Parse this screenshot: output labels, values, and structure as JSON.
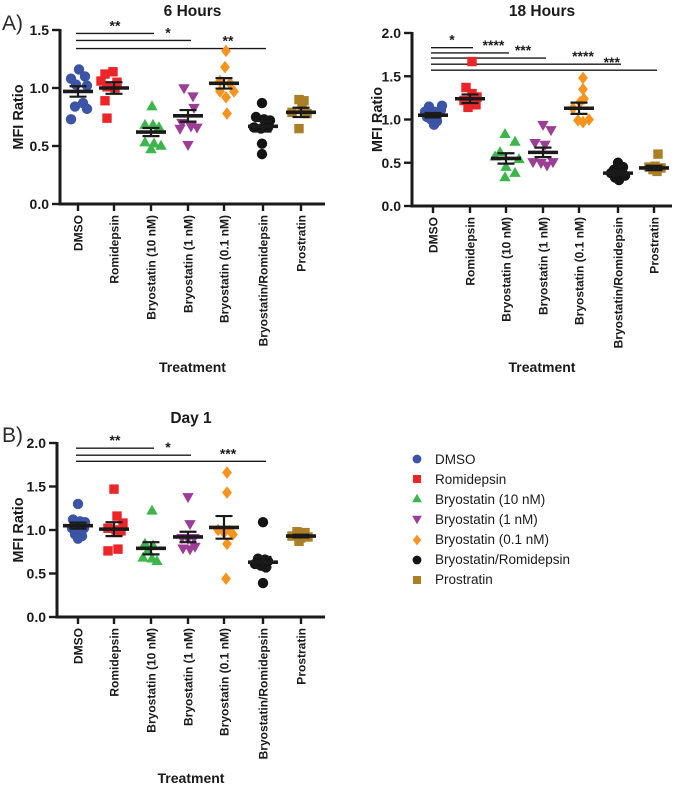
{
  "panels": {
    "a": "A)",
    "b": "B)"
  },
  "colors": {
    "blue": "#3B54A5",
    "red": "#EC2528",
    "green": "#3CB64B",
    "purple": "#9C3D97",
    "orange": "#F79420",
    "black": "#141414",
    "dark_yellow": "#AC7E25",
    "axis": "#1a1a1a"
  },
  "legend": {
    "items": [
      {
        "label": "DMSO",
        "marker": "circle",
        "color": "#3B54A5"
      },
      {
        "label": "Romidepsin",
        "marker": "square",
        "color": "#EC2528"
      },
      {
        "label": "Bryostatin (10 nM)",
        "marker": "triangle-up",
        "color": "#3CB64B"
      },
      {
        "label": "Bryostatin (1 nM)",
        "marker": "triangle-down",
        "color": "#9C3D97"
      },
      {
        "label": "Bryostatin (0.1 nM)",
        "marker": "diamond",
        "color": "#F79420"
      },
      {
        "label": "Bryostatin/Romidepsin",
        "marker": "circle",
        "color": "#141414"
      },
      {
        "label": "Prostratin",
        "marker": "square",
        "color": "#AC7E25"
      }
    ]
  },
  "chart_data": [
    {
      "type": "scatter",
      "title": "6 Hours",
      "xlabel": "Treatment",
      "ylabel": "MFI Ratio",
      "ylim": [
        0,
        1.5
      ],
      "yticks": [
        "0.0",
        "0.5",
        "1.0",
        "1.5"
      ],
      "categories": [
        "DMSO",
        "Romidepsin",
        "Bryostatin (10 nM)",
        "Bryostatin (1 nM)",
        "Bryostatin (0.1 nM)",
        "Bryostatin/Romidepsin",
        "Prostratin"
      ],
      "series": [
        {
          "name": "DMSO",
          "marker": "circle",
          "color": "#3B54A5",
          "mean": 0.97,
          "sem": 0.045,
          "points": [
            [
              1,
              1.16
            ],
            [
              -7,
              1.08
            ],
            [
              7,
              1.1
            ],
            [
              -2,
              1.03
            ],
            [
              9,
              1.02
            ],
            [
              5,
              0.87
            ],
            [
              -3,
              0.84
            ],
            [
              9,
              0.82
            ],
            [
              -7,
              0.73
            ]
          ]
        },
        {
          "name": "Romidepsin",
          "marker": "square",
          "color": "#EC2528",
          "mean": 1.0,
          "sem": 0.05,
          "points": [
            [
              -9,
              1.12
            ],
            [
              -1,
              1.14
            ],
            [
              -13,
              1.06
            ],
            [
              3,
              1.05
            ],
            [
              -7,
              1.01
            ],
            [
              1,
              1.0
            ],
            [
              -9,
              0.89
            ],
            [
              -7,
              0.74
            ]
          ]
        },
        {
          "name": "Bryostatin (10 nM)",
          "marker": "triangle-up",
          "color": "#3CB64B",
          "mean": 0.62,
          "sem": 0.035,
          "points": [
            [
              1,
              0.84
            ],
            [
              -6,
              0.68
            ],
            [
              2,
              0.68
            ],
            [
              8,
              0.66
            ],
            [
              -6,
              0.53
            ],
            [
              3,
              0.52
            ],
            [
              10,
              0.5
            ],
            [
              0,
              0.47
            ]
          ]
        },
        {
          "name": "Bryostatin (1 nM)",
          "marker": "triangle-down",
          "color": "#9C3D97",
          "mean": 0.76,
          "sem": 0.05,
          "points": [
            [
              -4,
              1.0
            ],
            [
              5,
              0.93
            ],
            [
              6,
              0.83
            ],
            [
              -6,
              0.7
            ],
            [
              3,
              0.67
            ],
            [
              9,
              0.66
            ],
            [
              -8,
              0.65
            ],
            [
              0,
              0.51
            ]
          ]
        },
        {
          "name": "Bryostatin (0.1 nM)",
          "marker": "diamond",
          "color": "#F79420",
          "mean": 1.04,
          "sem": 0.045,
          "points": [
            [
              2,
              1.32
            ],
            [
              1,
              1.18
            ],
            [
              -4,
              1.06
            ],
            [
              6,
              1.04
            ],
            [
              -4,
              0.97
            ],
            [
              10,
              0.97
            ],
            [
              2,
              0.92
            ],
            [
              3,
              0.78
            ]
          ]
        },
        {
          "name": "Bryostatin/Romidepsin",
          "marker": "circle",
          "color": "#141414",
          "mean": 0.67,
          "sem": 0.045,
          "points": [
            [
              -1,
              0.87
            ],
            [
              -7,
              0.75
            ],
            [
              1,
              0.73
            ],
            [
              7,
              0.72
            ],
            [
              -9,
              0.66
            ],
            [
              -2,
              0.65
            ],
            [
              5,
              0.66
            ],
            [
              -1,
              0.52
            ],
            [
              -1,
              0.43
            ]
          ]
        },
        {
          "name": "Prostratin",
          "marker": "square",
          "color": "#AC7E25",
          "mean": 0.79,
          "sem": 0.04,
          "points": [
            [
              -2,
              0.9
            ],
            [
              3,
              0.89
            ],
            [
              1,
              0.83
            ],
            [
              -9,
              0.79
            ],
            [
              6,
              0.78
            ],
            [
              -2,
              0.65
            ]
          ]
        }
      ],
      "significance": [
        {
          "from": 0,
          "to": 2,
          "label": "**",
          "level": 1.47,
          "label_pos": "mid"
        },
        {
          "from": 0,
          "to": 3,
          "label": "*",
          "level": 1.41,
          "label_pos": "end"
        },
        {
          "from": 0,
          "to": 5,
          "label": "**",
          "level": 1.34,
          "label_pos": "end"
        }
      ]
    },
    {
      "type": "scatter",
      "title": "18 Hours",
      "xlabel": "Treatment",
      "ylabel": "MFI Ratio",
      "ylim": [
        0,
        2.0
      ],
      "yticks": [
        "0.0",
        "0.5",
        "1.0",
        "1.5",
        "2.0"
      ],
      "categories": [
        "DMSO",
        "Romidepsin",
        "Bryostatin (10 nM)",
        "Bryostatin (1 nM)",
        "Bryostatin (0.1 nM)",
        "Bryostatin/Romidepsin",
        "Prostratin"
      ],
      "series": [
        {
          "name": "DMSO",
          "marker": "circle",
          "color": "#3B54A5",
          "mean": 1.05,
          "sem": 0.025,
          "points": [
            [
              -4,
              1.15
            ],
            [
              9,
              1.16
            ],
            [
              -8,
              1.09
            ],
            [
              1,
              1.09
            ],
            [
              8,
              1.11
            ],
            [
              -6,
              1.03
            ],
            [
              -2,
              1.0
            ],
            [
              4,
              0.98
            ],
            [
              1,
              0.94
            ]
          ]
        },
        {
          "name": "Romidepsin",
          "marker": "square",
          "color": "#EC2528",
          "mean": 1.24,
          "sem": 0.05,
          "points": [
            [
              2,
              1.67
            ],
            [
              -4,
              1.37
            ],
            [
              2,
              1.3
            ],
            [
              7,
              1.26
            ],
            [
              -6,
              1.22
            ],
            [
              0,
              1.18
            ],
            [
              6,
              1.17
            ],
            [
              -2,
              1.14
            ]
          ]
        },
        {
          "name": "Bryostatin (10 nM)",
          "marker": "triangle-up",
          "color": "#3CB64B",
          "mean": 0.55,
          "sem": 0.06,
          "points": [
            [
              -1,
              0.83
            ],
            [
              9,
              0.74
            ],
            [
              -6,
              0.62
            ],
            [
              -11,
              0.57
            ],
            [
              13,
              0.54
            ],
            [
              0,
              0.45
            ],
            [
              9,
              0.38
            ],
            [
              -1,
              0.33
            ]
          ]
        },
        {
          "name": "Bryostatin (1 nM)",
          "marker": "triangle-down",
          "color": "#9C3D97",
          "mean": 0.62,
          "sem": 0.055,
          "points": [
            [
              0,
              0.94
            ],
            [
              8,
              0.88
            ],
            [
              -8,
              0.73
            ],
            [
              2,
              0.71
            ],
            [
              -10,
              0.51
            ],
            [
              -2,
              0.5
            ],
            [
              10,
              0.51
            ],
            [
              4,
              0.47
            ]
          ]
        },
        {
          "name": "Bryostatin (0.1 nM)",
          "marker": "diamond",
          "color": "#F79420",
          "mean": 1.13,
          "sem": 0.065,
          "points": [
            [
              4,
              1.48
            ],
            [
              4,
              1.35
            ],
            [
              5,
              1.24
            ],
            [
              1,
              1.2
            ],
            [
              -6,
              1.13
            ],
            [
              10,
              1.0
            ],
            [
              -1,
              0.99
            ],
            [
              4,
              0.97
            ]
          ]
        },
        {
          "name": "Bryostatin/Romidepsin",
          "marker": "circle",
          "color": "#141414",
          "mean": 0.38,
          "sem": 0.025,
          "points": [
            [
              0,
              0.5
            ],
            [
              5,
              0.45
            ],
            [
              -4,
              0.42
            ],
            [
              4,
              0.4
            ],
            [
              -7,
              0.38
            ],
            [
              1,
              0.36
            ],
            [
              7,
              0.35
            ],
            [
              -3,
              0.33
            ],
            [
              1,
              0.3
            ]
          ]
        },
        {
          "name": "Prostratin",
          "marker": "square",
          "color": "#AC7E25",
          "mean": 0.44,
          "sem": 0.025,
          "points": [
            [
              4,
              0.6
            ],
            [
              1,
              0.46
            ],
            [
              -5,
              0.45
            ],
            [
              7,
              0.44
            ],
            [
              -1,
              0.42
            ],
            [
              3,
              0.4
            ]
          ]
        }
      ],
      "significance": [
        {
          "from": 0,
          "to": 1,
          "label": "*",
          "level": 1.83,
          "label_pos": "mid"
        },
        {
          "from": 0,
          "to": 2,
          "label": "****",
          "level": 1.77,
          "label_pos": "end"
        },
        {
          "from": 0,
          "to": 3,
          "label": "***",
          "level": 1.71,
          "label_pos": "end"
        },
        {
          "from": 0,
          "to": 5,
          "label": "****",
          "level": 1.64,
          "label_pos": "end"
        },
        {
          "from": 0,
          "to": 6,
          "label": "***",
          "level": 1.57,
          "label_pos": "end"
        }
      ]
    },
    {
      "type": "scatter",
      "title": "Day 1",
      "xlabel": "Treatment",
      "ylabel": "MFI Ratio",
      "ylim": [
        0,
        2.0
      ],
      "yticks": [
        "0.0",
        "0.5",
        "1.0",
        "1.5",
        "2.0"
      ],
      "categories": [
        "DMSO",
        "Romidepsin",
        "Bryostatin (10 nM)",
        "Bryostatin (1 nM)",
        "Bryostatin (0.1 nM)",
        "Bryostatin/Romidepsin",
        "Prostratin"
      ],
      "series": [
        {
          "name": "DMSO",
          "marker": "circle",
          "color": "#3B54A5",
          "mean": 1.05,
          "sem": 0.035,
          "points": [
            [
              0,
              1.3
            ],
            [
              -5,
              1.12
            ],
            [
              2,
              1.1
            ],
            [
              7,
              1.09
            ],
            [
              -6,
              1.02
            ],
            [
              0,
              1.02
            ],
            [
              6,
              1.02
            ],
            [
              -3,
              0.95
            ],
            [
              4,
              0.93
            ],
            [
              0,
              0.9
            ]
          ]
        },
        {
          "name": "Romidepsin",
          "marker": "square",
          "color": "#EC2528",
          "mean": 1.01,
          "sem": 0.08,
          "points": [
            [
              0,
              1.47
            ],
            [
              3,
              1.16
            ],
            [
              9,
              1.08
            ],
            [
              -6,
              1.02
            ],
            [
              2,
              1.0
            ],
            [
              7,
              0.99
            ],
            [
              4,
              0.78
            ],
            [
              -6,
              0.76
            ]
          ]
        },
        {
          "name": "Bryostatin (10 nM)",
          "marker": "triangle-up",
          "color": "#3CB64B",
          "mean": 0.79,
          "sem": 0.07,
          "points": [
            [
              1,
              1.22
            ],
            [
              -6,
              0.84
            ],
            [
              2,
              0.82
            ],
            [
              -3,
              0.76
            ],
            [
              -8,
              0.68
            ],
            [
              1,
              0.67
            ],
            [
              6,
              0.64
            ]
          ]
        },
        {
          "name": "Bryostatin (1 nM)",
          "marker": "triangle-down",
          "color": "#9C3D97",
          "mean": 0.92,
          "sem": 0.06,
          "points": [
            [
              0,
              1.38
            ],
            [
              2,
              1.07
            ],
            [
              -6,
              0.91
            ],
            [
              0,
              0.9
            ],
            [
              6,
              0.91
            ],
            [
              -5,
              0.79
            ],
            [
              2,
              0.78
            ],
            [
              7,
              0.81
            ]
          ]
        },
        {
          "name": "Bryostatin (0.1 nM)",
          "marker": "diamond",
          "color": "#F79420",
          "mean": 1.03,
          "sem": 0.13,
          "points": [
            [
              3,
              1.66
            ],
            [
              3,
              1.43
            ],
            [
              -6,
              1.0
            ],
            [
              6,
              0.99
            ],
            [
              0,
              0.97
            ],
            [
              9,
              0.95
            ],
            [
              3,
              0.84
            ],
            [
              2,
              0.44
            ]
          ]
        },
        {
          "name": "Bryostatin/Romidepsin",
          "marker": "circle",
          "color": "#141414",
          "mean": 0.63,
          "sem": 0.06,
          "points": [
            [
              0,
              1.09
            ],
            [
              -5,
              0.67
            ],
            [
              2,
              0.66
            ],
            [
              5,
              0.64
            ],
            [
              -8,
              0.61
            ],
            [
              -2,
              0.59
            ],
            [
              3,
              0.57
            ],
            [
              0,
              0.39
            ]
          ]
        },
        {
          "name": "Prostratin",
          "marker": "square",
          "color": "#AC7E25",
          "mean": 0.93,
          "sem": 0.015,
          "points": [
            [
              -4,
              0.98
            ],
            [
              4,
              0.97
            ],
            [
              -9,
              0.93
            ],
            [
              7,
              0.92
            ],
            [
              0,
              0.91
            ],
            [
              -2,
              0.87
            ]
          ]
        }
      ],
      "significance": [
        {
          "from": 0,
          "to": 2,
          "label": "**",
          "level": 1.94,
          "label_pos": "mid"
        },
        {
          "from": 0,
          "to": 3,
          "label": "*",
          "level": 1.86,
          "label_pos": "end"
        },
        {
          "from": 0,
          "to": 5,
          "label": "***",
          "level": 1.79,
          "label_pos": "end"
        }
      ]
    }
  ]
}
